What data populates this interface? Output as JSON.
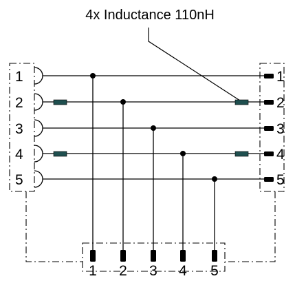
{
  "annotation": {
    "text": "4x Inductance 110nH"
  },
  "left_connector": {
    "pins": [
      "1",
      "2",
      "3",
      "4",
      "5"
    ]
  },
  "right_connector": {
    "pins": [
      "1",
      "2",
      "3",
      "4",
      "5"
    ]
  },
  "bottom_connector": {
    "pins": [
      "1",
      "2",
      "3",
      "4",
      "5"
    ]
  },
  "colors": {
    "wire": "#000000",
    "inductor": "#1f4f4f",
    "outline": "#000000"
  }
}
